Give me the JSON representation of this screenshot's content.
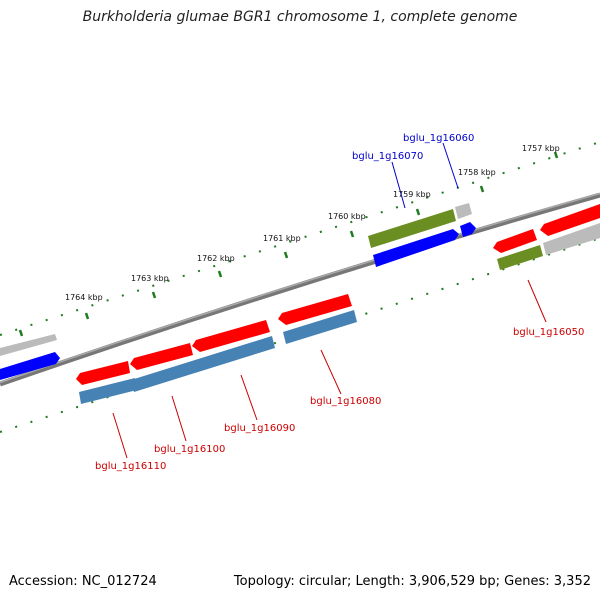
{
  "title": "Burkholderia glumae BGR1 chromosome 1, complete genome",
  "footer": {
    "accession": "Accession: NC_012724",
    "summary": "Topology: circular; Length: 3,906,529 bp; Genes: 3,352"
  },
  "colors": {
    "red": "#ff0000",
    "blue": "#0000ff",
    "steel": "#4682b4",
    "olive": "#6b8e23",
    "gray": "#bbbbbb",
    "backbone": "#777777",
    "ticks": "#1e7b1e",
    "red_label": "#cc0000",
    "blue_label": "#0000cc"
  },
  "kbp_labels": [
    {
      "id": "1757",
      "text": "1757 kbp"
    },
    {
      "id": "1758",
      "text": "1758 kbp"
    },
    {
      "id": "1759",
      "text": "1759 kbp"
    },
    {
      "id": "1760",
      "text": "1760 kbp"
    },
    {
      "id": "1761",
      "text": "1761 kbp"
    },
    {
      "id": "1762",
      "text": "1762 kbp"
    },
    {
      "id": "1763",
      "text": "1763 kbp"
    },
    {
      "id": "1764",
      "text": "1764 kbp"
    }
  ],
  "gene_labels": [
    {
      "id": "g16060",
      "text": "bglu_1g16060",
      "color": "blue"
    },
    {
      "id": "g16070",
      "text": "bglu_1g16070",
      "color": "blue"
    },
    {
      "id": "g16050",
      "text": "bglu_1g16050",
      "color": "red"
    },
    {
      "id": "g16080",
      "text": "bglu_1g16080",
      "color": "red"
    },
    {
      "id": "g16090",
      "text": "bglu_1g16090",
      "color": "red"
    },
    {
      "id": "g16100",
      "text": "bglu_1g16100",
      "color": "red"
    },
    {
      "id": "g16110",
      "text": "bglu_1g16110",
      "color": "red"
    }
  ]
}
